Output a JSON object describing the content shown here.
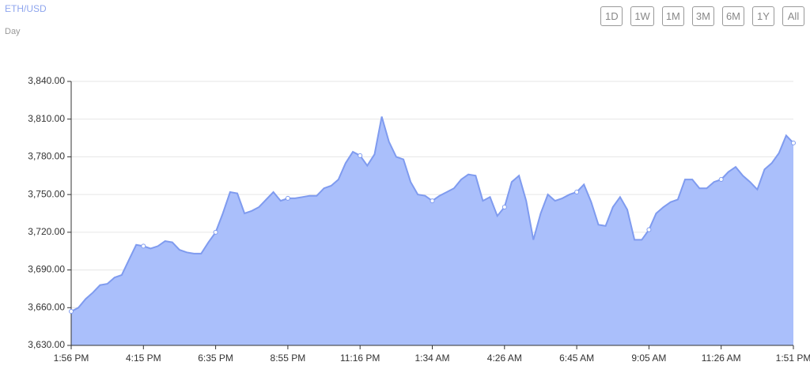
{
  "header": {
    "title": "ETH/USD",
    "subtitle": "Day"
  },
  "buttons": [
    "1D",
    "1W",
    "1M",
    "3M",
    "6M",
    "1Y",
    "All"
  ],
  "chart_data": {
    "type": "area",
    "color": "#aabffb",
    "line_color": "#7f9bef",
    "grid": true,
    "categories": [
      "1:56 PM",
      null,
      null,
      null,
      null,
      null,
      null,
      null,
      null,
      null,
      "4:15 PM",
      null,
      null,
      null,
      null,
      null,
      null,
      null,
      null,
      null,
      "6:35 PM",
      null,
      null,
      null,
      null,
      null,
      null,
      null,
      null,
      null,
      "8:55 PM",
      null,
      null,
      null,
      null,
      null,
      null,
      null,
      null,
      null,
      "11:16 PM",
      null,
      null,
      null,
      null,
      null,
      null,
      null,
      null,
      null,
      "1:34 AM",
      null,
      null,
      null,
      null,
      null,
      null,
      null,
      null,
      null,
      "4:26 AM",
      null,
      null,
      null,
      null,
      null,
      null,
      null,
      null,
      null,
      "6:45 AM",
      null,
      null,
      null,
      null,
      null,
      null,
      null,
      null,
      null,
      "9:05 AM",
      null,
      null,
      null,
      null,
      null,
      null,
      null,
      null,
      null,
      "11:26 AM",
      null,
      null,
      null,
      null,
      null,
      null,
      null,
      null,
      null,
      "1:51 PM"
    ],
    "values": [
      3657,
      3660,
      3667,
      3672,
      3678,
      3679,
      3684,
      3686,
      3698,
      3710,
      3709,
      3707,
      3709,
      3713,
      3712,
      3706,
      3704,
      3703,
      3703,
      3712,
      3720,
      3735,
      3752,
      3751,
      3735,
      3737,
      3740,
      3746,
      3752,
      3745,
      3747,
      3747,
      3748,
      3749,
      3749,
      3755,
      3757,
      3762,
      3775,
      3784,
      3781,
      3773,
      3782,
      3812,
      3792,
      3780,
      3778,
      3760,
      3750,
      3749,
      3745,
      3749,
      3752,
      3755,
      3762,
      3766,
      3765,
      3745,
      3748,
      3733,
      3740,
      3760,
      3765,
      3745,
      3714,
      3735,
      3750,
      3745,
      3747,
      3750,
      3752,
      3758,
      3744,
      3726,
      3725,
      3740,
      3748,
      3738,
      3714,
      3714,
      3722,
      3735,
      3740,
      3744,
      3746,
      3762,
      3762,
      3755,
      3755,
      3760,
      3762,
      3768,
      3772,
      3765,
      3760,
      3754,
      3770,
      3775,
      3783,
      3797,
      3791
    ],
    "ylim": [
      3630,
      3840
    ],
    "yticks": [
      {
        "value": 3630,
        "label": "3,630.00"
      },
      {
        "value": 3660,
        "label": "3,660.00"
      },
      {
        "value": 3690,
        "label": "3,690.00"
      },
      {
        "value": 3720,
        "label": "3,720.00"
      },
      {
        "value": 3750,
        "label": "3,750.00"
      },
      {
        "value": 3780,
        "label": "3,780.00"
      },
      {
        "value": 3810,
        "label": "3,810.00"
      },
      {
        "value": 3840,
        "label": "3,840.00"
      }
    ]
  }
}
